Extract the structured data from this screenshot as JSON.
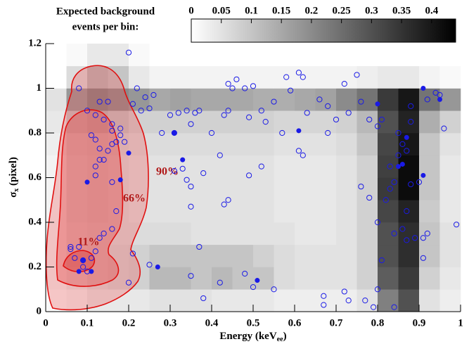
{
  "chart_data": {
    "type": "heatmap_scatter",
    "colorbar_title": [
      "Expected background",
      "events per bin:"
    ],
    "xlabel": [
      "Energy (keV",
      "ee",
      ")"
    ],
    "ylabel": [
      "σ",
      "x",
      " (pixel)"
    ],
    "annotations": [
      "90%",
      "66%",
      "11%"
    ],
    "xlim": [
      0,
      1
    ],
    "ylim": [
      0,
      1.2
    ],
    "xticks": [
      0,
      0.1,
      0.2,
      0.3,
      0.4,
      0.5,
      0.6,
      0.7,
      0.8,
      0.9,
      1
    ],
    "yticks": [
      0,
      0.2,
      0.4,
      0.6,
      0.8,
      1,
      1.2
    ],
    "zlim": [
      0,
      0.44
    ],
    "zticks": [
      0,
      0.05,
      0.1,
      0.15,
      0.2,
      0.25,
      0.3,
      0.35,
      0.4
    ],
    "heatmap": {
      "xbins": [
        0,
        0.05,
        0.1,
        0.15,
        0.2,
        0.25,
        0.3,
        0.35,
        0.4,
        0.45,
        0.5,
        0.55,
        0.6,
        0.65,
        0.7,
        0.75,
        0.8,
        0.85,
        0.9,
        0.95,
        1
      ],
      "ybins": [
        0,
        0.1,
        0.2,
        0.3,
        0.4,
        0.5,
        0.6,
        0.7,
        0.8,
        0.9,
        1,
        1.1,
        1.2
      ],
      "z": [
        [
          0.01,
          0.02,
          0.04,
          0.04,
          0.04,
          0.05,
          0.05,
          0.05,
          0.04,
          0.04,
          0.04,
          0.03,
          0.03,
          0.03,
          0.03,
          0.05,
          0.22,
          0.3,
          0.05,
          0.03
        ],
        [
          0.02,
          0.04,
          0.06,
          0.07,
          0.08,
          0.12,
          0.12,
          0.1,
          0.12,
          0.1,
          0.1,
          0.06,
          0.05,
          0.05,
          0.05,
          0.08,
          0.28,
          0.34,
          0.08,
          0.04
        ],
        [
          0.02,
          0.05,
          0.06,
          0.07,
          0.08,
          0.1,
          0.1,
          0.1,
          0.1,
          0.1,
          0.08,
          0.06,
          0.05,
          0.05,
          0.05,
          0.08,
          0.3,
          0.36,
          0.1,
          0.05
        ],
        [
          0.02,
          0.05,
          0.06,
          0.06,
          0.06,
          0.06,
          0.06,
          0.05,
          0.05,
          0.05,
          0.05,
          0.05,
          0.04,
          0.04,
          0.05,
          0.08,
          0.3,
          0.36,
          0.1,
          0.05
        ],
        [
          0.02,
          0.06,
          0.07,
          0.06,
          0.05,
          0.05,
          0.05,
          0.05,
          0.05,
          0.05,
          0.05,
          0.04,
          0.04,
          0.04,
          0.05,
          0.08,
          0.32,
          0.38,
          0.09,
          0.04
        ],
        [
          0.02,
          0.06,
          0.07,
          0.06,
          0.05,
          0.05,
          0.05,
          0.05,
          0.05,
          0.05,
          0.05,
          0.04,
          0.04,
          0.04,
          0.05,
          0.08,
          0.34,
          0.42,
          0.1,
          0.04
        ],
        [
          0.02,
          0.06,
          0.07,
          0.06,
          0.05,
          0.05,
          0.05,
          0.05,
          0.05,
          0.05,
          0.05,
          0.04,
          0.04,
          0.04,
          0.05,
          0.08,
          0.33,
          0.42,
          0.1,
          0.04
        ],
        [
          0.03,
          0.07,
          0.08,
          0.07,
          0.06,
          0.06,
          0.06,
          0.06,
          0.06,
          0.06,
          0.06,
          0.05,
          0.05,
          0.05,
          0.06,
          0.1,
          0.32,
          0.4,
          0.1,
          0.05
        ],
        [
          0.04,
          0.1,
          0.12,
          0.1,
          0.08,
          0.08,
          0.08,
          0.08,
          0.08,
          0.08,
          0.08,
          0.07,
          0.07,
          0.07,
          0.08,
          0.12,
          0.3,
          0.38,
          0.14,
          0.08
        ],
        [
          0.05,
          0.18,
          0.22,
          0.2,
          0.18,
          0.15,
          0.16,
          0.15,
          0.15,
          0.15,
          0.14,
          0.14,
          0.15,
          0.16,
          0.2,
          0.24,
          0.34,
          0.4,
          0.24,
          0.18
        ],
        [
          0,
          0.06,
          0.12,
          0.1,
          0.04,
          0.02,
          0.02,
          0.02,
          0.02,
          0.02,
          0.02,
          0.02,
          0.02,
          0.02,
          0.02,
          0.03,
          0.04,
          0.04,
          0.02,
          0.01
        ],
        [
          0,
          0.01,
          0.04,
          0.04,
          0.01,
          0,
          0,
          0,
          0,
          0,
          0,
          0,
          0,
          0,
          0,
          0,
          0,
          0,
          0,
          0
        ]
      ]
    },
    "series": [
      {
        "color": "#1a1ae6",
        "filled": false,
        "x": [
          0.08,
          0.2,
          0.13,
          0.15,
          0.1,
          0.12,
          0.14,
          0.16,
          0.18,
          0.21,
          0.23,
          0.24,
          0.26,
          0.25,
          0.22,
          0.3,
          0.31,
          0.32,
          0.34,
          0.36,
          0.37,
          0.35,
          0.4,
          0.42,
          0.43,
          0.44,
          0.45,
          0.46,
          0.44,
          0.48,
          0.5,
          0.49,
          0.52,
          0.53,
          0.55,
          0.57,
          0.58,
          0.59,
          0.61,
          0.62,
          0.63,
          0.66,
          0.68,
          0.7,
          0.72,
          0.73,
          0.75,
          0.76,
          0.78,
          0.8,
          0.81,
          0.88,
          0.92,
          0.94,
          0.96,
          0.95,
          0.68,
          0.61,
          0.62,
          0.52,
          0.49,
          0.35,
          0.34,
          0.33,
          0.35,
          0.38,
          0.43,
          0.44,
          0.31,
          0.28,
          0.76,
          0.78,
          0.82,
          0.83,
          0.84,
          0.8,
          0.87,
          0.88,
          0.9,
          0.89,
          0.92,
          0.91,
          0.99,
          0.84,
          0.86,
          0.87,
          0.85,
          0.86,
          0.87,
          0.85,
          0.83,
          0.88,
          0.91,
          0.8,
          0.81,
          0.84,
          0.79,
          0.73,
          0.72,
          0.77,
          0.67,
          0.67,
          0.55,
          0.5,
          0.48,
          0.42,
          0.38,
          0.37,
          0.35,
          0.25,
          0.2,
          0.21,
          0.14,
          0.12,
          0.11,
          0.09,
          0.06,
          0.06,
          0.07,
          0.09,
          0.1,
          0.08,
          0.13,
          0.16,
          0.17,
          0.16,
          0.12,
          0.12,
          0.13,
          0.14,
          0.15,
          0.16,
          0.17,
          0.13,
          0.11,
          0.12,
          0.16,
          0.18,
          0.19
        ],
        "values": [
          1.0,
          1.16,
          0.94,
          0.94,
          0.9,
          0.88,
          0.86,
          0.84,
          0.82,
          0.93,
          0.9,
          0.96,
          0.97,
          0.91,
          1.0,
          0.88,
          0.8,
          0.89,
          0.9,
          0.89,
          0.9,
          0.84,
          0.8,
          0.7,
          0.88,
          0.9,
          1.0,
          1.04,
          1.02,
          1.0,
          1.01,
          0.87,
          0.9,
          0.85,
          0.94,
          0.8,
          1.05,
          0.99,
          1.07,
          1.05,
          0.89,
          0.95,
          0.92,
          0.86,
          1.02,
          0.89,
          1.06,
          0.94,
          0.86,
          0.83,
          0.86,
          0.92,
          0.95,
          0.98,
          0.82,
          0.97,
          0.8,
          0.72,
          0.7,
          0.65,
          0.61,
          0.56,
          0.59,
          0.64,
          0.47,
          0.62,
          0.48,
          0.5,
          0.63,
          0.8,
          0.56,
          0.51,
          0.5,
          0.55,
          0.58,
          0.4,
          0.45,
          0.57,
          0.58,
          0.33,
          0.35,
          0.33,
          0.39,
          0.35,
          0.37,
          0.32,
          0.8,
          0.75,
          0.72,
          0.7,
          0.65,
          0.85,
          0.24,
          0.1,
          0.23,
          0.02,
          0.02,
          0.05,
          0.09,
          0.05,
          0.07,
          0.03,
          0.1,
          0.11,
          0.17,
          0.13,
          0.06,
          0.29,
          0.16,
          0.21,
          0.13,
          0.26,
          0.35,
          0.27,
          0.24,
          0.23,
          0.29,
          0.28,
          0.24,
          0.2,
          0.18,
          0.29,
          0.33,
          0.37,
          0.45,
          0.58,
          0.61,
          0.65,
          0.68,
          0.68,
          0.72,
          0.75,
          0.76,
          0.73,
          0.79,
          0.77,
          0.81,
          0.79,
          0.76
        ]
      },
      {
        "color": "#1a1ae6",
        "filled": true,
        "x": [
          0.1,
          0.2,
          0.18,
          0.08,
          0.11,
          0.09,
          0.27,
          0.31,
          0.33,
          0.51,
          0.61,
          0.8,
          0.87,
          0.86,
          0.85,
          0.91,
          0.91,
          0.95
        ],
        "values": [
          0.58,
          0.71,
          0.59,
          0.18,
          0.18,
          0.23,
          0.2,
          0.8,
          0.68,
          0.14,
          0.81,
          0.93,
          0.78,
          0.66,
          0.65,
          0.61,
          1.0,
          0.95
        ]
      }
    ]
  }
}
